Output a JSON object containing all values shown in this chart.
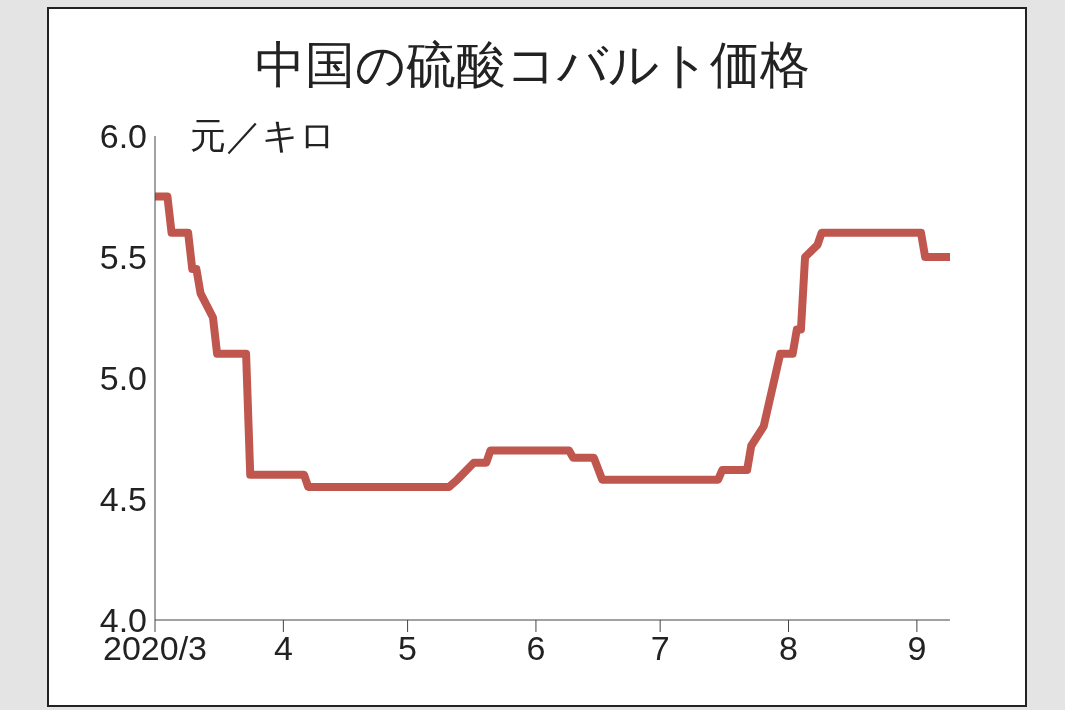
{
  "chart_data": {
    "type": "line",
    "title": "中国の硫酸コバルト価格",
    "ylabel": "元／キロ",
    "xlim": [
      "2020-03-01",
      "2020-09-09"
    ],
    "xticks": [
      {
        "value": "2020-03-01",
        "label": "2020/3"
      },
      {
        "value": "2020-04-01",
        "label": "4"
      },
      {
        "value": "2020-05-01",
        "label": "5"
      },
      {
        "value": "2020-06-01",
        "label": "6"
      },
      {
        "value": "2020-07-01",
        "label": "7"
      },
      {
        "value": "2020-08-01",
        "label": "8"
      },
      {
        "value": "2020-09-01",
        "label": "9"
      }
    ],
    "ylim": [
      4,
      6
    ],
    "yticks": [
      {
        "value": 4,
        "label": "4.0"
      },
      {
        "value": 4.5,
        "label": "4.5"
      },
      {
        "value": 5,
        "label": "5.0"
      },
      {
        "value": 5.5,
        "label": "5.5"
      },
      {
        "value": 6,
        "label": "6.0"
      }
    ],
    "grid": false,
    "legend": false,
    "marker": "none",
    "line_style": "solid",
    "series": [
      {
        "color": "#c0574f",
        "x": [
          "2020-03-01",
          "2020-03-04",
          "2020-03-05",
          "2020-03-09",
          "2020-03-10",
          "2020-03-11",
          "2020-03-12",
          "2020-03-15",
          "2020-03-16",
          "2020-03-23",
          "2020-03-24",
          "2020-04-06",
          "2020-04-07",
          "2020-05-11",
          "2020-05-13",
          "2020-05-17",
          "2020-05-20",
          "2020-05-21",
          "2020-06-09",
          "2020-06-10",
          "2020-06-15",
          "2020-06-17",
          "2020-07-15",
          "2020-07-16",
          "2020-07-22",
          "2020-07-23",
          "2020-07-26",
          "2020-07-30",
          "2020-08-02",
          "2020-08-03",
          "2020-08-04",
          "2020-08-05",
          "2020-08-08",
          "2020-08-09",
          "2020-09-02",
          "2020-09-03",
          "2020-09-09"
        ],
        "values": [
          5.75,
          5.75,
          5.6,
          5.6,
          5.45,
          5.45,
          5.35,
          5.25,
          5.1,
          5.1,
          4.6,
          4.6,
          4.55,
          4.55,
          4.58,
          4.65,
          4.65,
          4.7,
          4.7,
          4.67,
          4.67,
          4.58,
          4.58,
          4.62,
          4.62,
          4.72,
          4.8,
          5.1,
          5.1,
          5.2,
          5.2,
          5.5,
          5.55,
          5.6,
          5.6,
          5.5,
          5.5
        ]
      }
    ]
  }
}
